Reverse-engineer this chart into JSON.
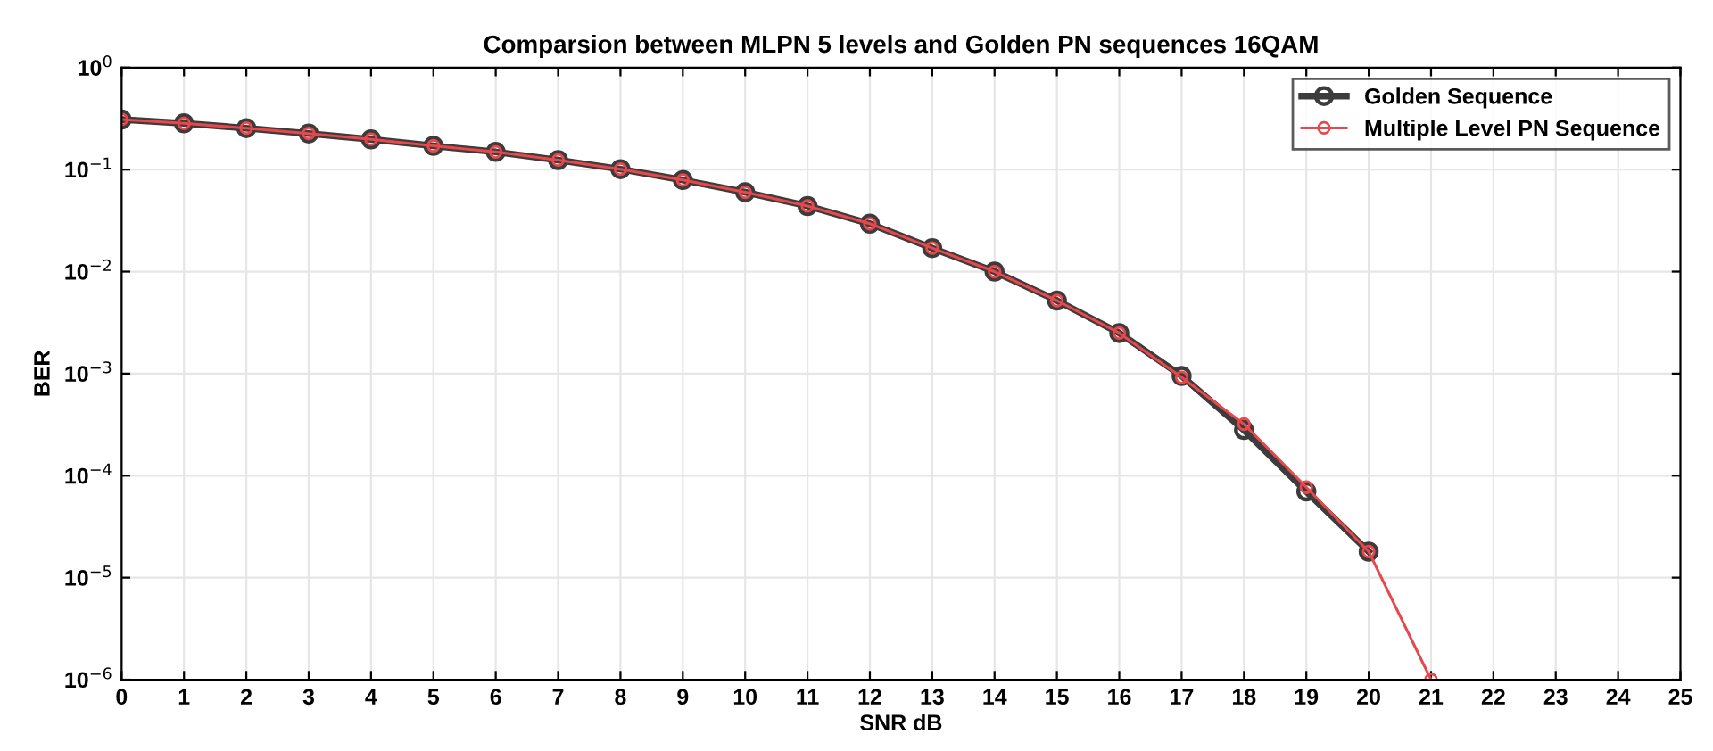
{
  "chart_data": {
    "type": "line",
    "title": "Comparsion between MLPN 5 levels and Golden PN sequences 16QAM",
    "xlabel": "SNR dB",
    "ylabel": "BER",
    "x": [
      0,
      1,
      2,
      3,
      4,
      5,
      6,
      7,
      8,
      9,
      10,
      11,
      12,
      13,
      14,
      15,
      16,
      17,
      18,
      19,
      20,
      21
    ],
    "series": [
      {
        "name": "Golden Sequence",
        "color": "#3c3c3c",
        "values": [
          0.31,
          0.284,
          0.255,
          0.226,
          0.198,
          0.171,
          0.149,
          0.124,
          0.101,
          0.079,
          0.06,
          0.044,
          0.0295,
          0.017,
          0.01,
          0.0052,
          0.0025,
          0.00095,
          0.00028,
          7e-05,
          1.8e-05,
          null
        ]
      },
      {
        "name": "Multiple Level PN Sequence",
        "color": "#e8474c",
        "values": [
          0.31,
          0.284,
          0.255,
          0.226,
          0.198,
          0.171,
          0.149,
          0.124,
          0.101,
          0.079,
          0.06,
          0.044,
          0.0295,
          0.017,
          0.01,
          0.0052,
          0.0025,
          0.00092,
          0.00032,
          7.7e-05,
          1.8e-05,
          1e-06
        ]
      }
    ],
    "log": "y",
    "xlim": [
      0,
      25
    ],
    "xticks": [
      0,
      1,
      2,
      3,
      4,
      5,
      6,
      7,
      8,
      9,
      10,
      11,
      12,
      13,
      14,
      15,
      16,
      17,
      18,
      19,
      20,
      21,
      22,
      23,
      24,
      25
    ],
    "ylim": [
      1e-06,
      1
    ],
    "yticks": [
      {
        "value": 1e-06,
        "label": "10$^{−6}$"
      },
      {
        "value": 1e-05,
        "label": "10$^{−5}$"
      },
      {
        "value": 0.0001,
        "label": "10$^{−4}$"
      },
      {
        "value": 0.001,
        "label": "10$^{−3}$"
      },
      {
        "value": 0.01,
        "label": "10$^{−2}$"
      },
      {
        "value": 0.1,
        "label": "10$^{−1}$"
      },
      {
        "value": 1,
        "label": "10$^{0}$"
      }
    ],
    "grid": true,
    "legend": "top right",
    "marker": "circle",
    "line_style": "solid"
  }
}
